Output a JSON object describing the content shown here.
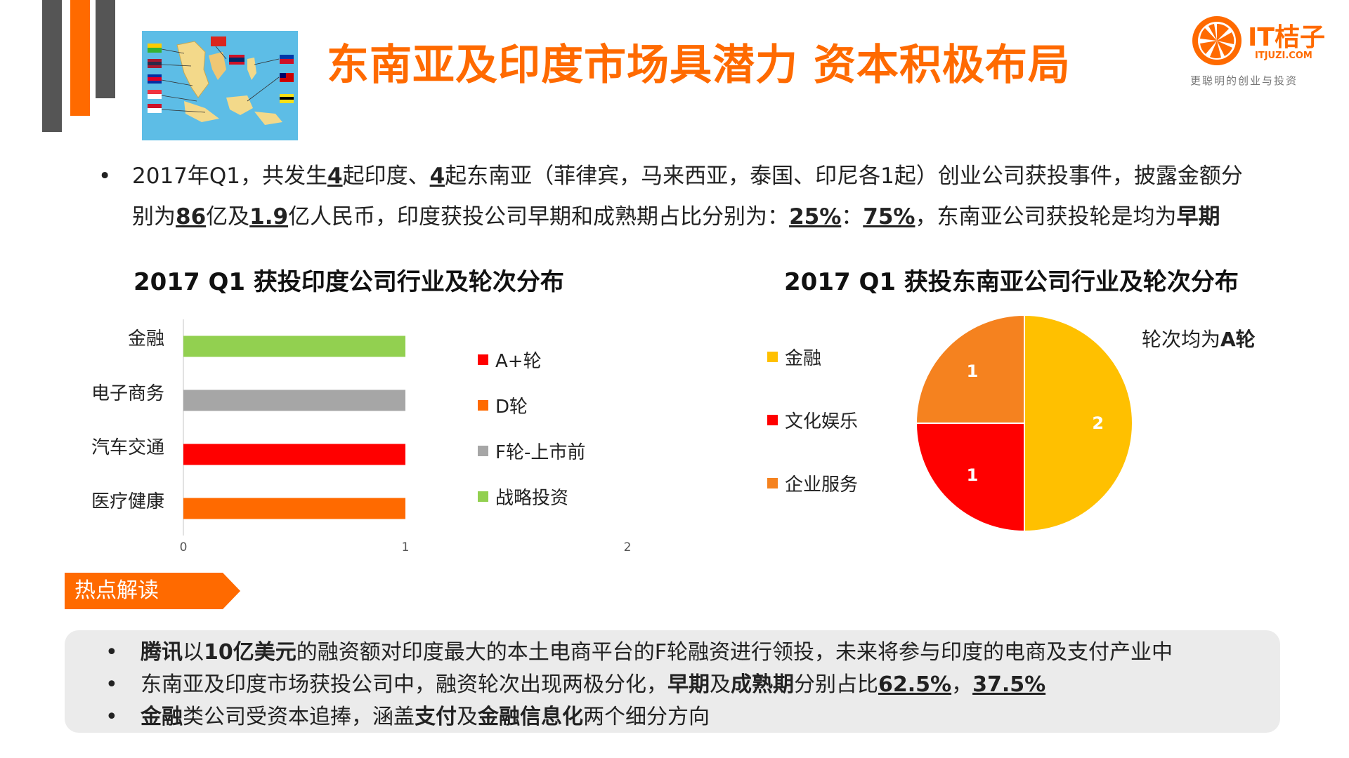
{
  "title": "东南亚及印度市场具潜力 资本积极布局",
  "logo": {
    "name": "IT桔子",
    "domain": "ITJUZI.COM",
    "slogan": "更聪明的创业与投资"
  },
  "summary": {
    "bullet": "•",
    "parts": [
      "2017年Q1，共发生",
      "4",
      "起印度、",
      "4",
      "起东南亚（菲律宾，马来西亚，泰国、印尼各1起）创业公司获投事件，披露金额分",
      "别为",
      "86",
      "亿及",
      "1.9",
      "亿人民币，印度获投公司早期和成熟期占比分别为：",
      "25%",
      "：",
      "75%",
      "，东南亚公司获投轮是均为",
      "早期"
    ]
  },
  "colors": {
    "orange": "#FF6A00",
    "red": "#FF0000",
    "gray": "#A6A6A6",
    "green": "#92D050",
    "yellow": "#FFC000",
    "pie_orange": "#F5821F"
  },
  "chart_data": [
    {
      "type": "bar",
      "orientation": "horizontal",
      "title": "2017 Q1 获投印度公司行业及轮次分布",
      "categories": [
        "金融",
        "电子商务",
        "汽车交通",
        "医疗健康"
      ],
      "values": [
        1,
        1,
        1,
        1
      ],
      "bar_rounds": [
        "战略投资",
        "F轮-上市前",
        "A+轮",
        "D轮"
      ],
      "bar_colors": [
        "#92D050",
        "#A6A6A6",
        "#FF0000",
        "#FF6A00"
      ],
      "xlim": [
        0,
        2
      ],
      "xticks": [
        "0",
        "1",
        "2"
      ],
      "legend": [
        {
          "name": "A+轮",
          "color": "#FF0000"
        },
        {
          "name": "D轮",
          "color": "#FF6A00"
        },
        {
          "name": "F轮-上市前",
          "color": "#A6A6A6"
        },
        {
          "name": "战略投资",
          "color": "#92D050"
        }
      ],
      "legend_position": "right"
    },
    {
      "type": "pie",
      "title": "2017 Q1 获投东南亚公司行业及轮次分布",
      "slices": [
        {
          "name": "金融",
          "value": 2,
          "label": "2",
          "color": "#FFC000"
        },
        {
          "name": "文化娱乐",
          "value": 1,
          "label": "1",
          "color": "#FF0000"
        },
        {
          "name": "企业服务",
          "value": 1,
          "label": "1",
          "color": "#F5821F"
        }
      ],
      "legend": [
        {
          "name": "金融",
          "color": "#FFC000"
        },
        {
          "name": "文化娱乐",
          "color": "#FF0000"
        },
        {
          "name": "企业服务",
          "color": "#F5821F"
        }
      ],
      "legend_position": "left",
      "annotation_parts": [
        "轮次均为",
        "A轮"
      ]
    }
  ],
  "hotspot": {
    "tag": "热点解读",
    "bullet": "•",
    "line1": [
      "腾讯",
      "以",
      "10亿美元",
      "的融资额对印度最大的本土电商平台的F轮融资进行领投，未来将参与印度的电商及支付产业中"
    ],
    "line2": [
      "东南亚及印度市场获投公司中，融资轮次出现两极分化，",
      "早期",
      "及",
      "成熟期",
      "分别占比",
      "62.5%",
      "，",
      "37.5%"
    ],
    "line3": [
      "金融",
      "类公司受资本追捧，涵盖",
      "支付",
      "及",
      "金融信息化",
      "两个细分方向"
    ]
  }
}
